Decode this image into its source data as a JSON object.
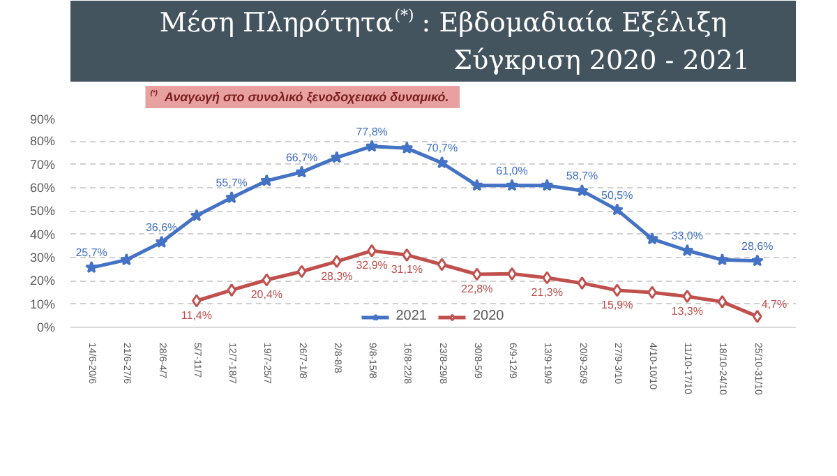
{
  "chart_data": {
    "type": "line",
    "title": "Μέση Πληρότητα$^{(*)}$: Εβδομαδιαία Εξέλιξη",
    "subtitle": "Σύγκριση 2020 - 2021",
    "annotations": [
      "$^{(*)}$ Αναγωγή στο συνολικό ξενοδοχειακό δυναμικό."
    ],
    "categories": [
      "14/6-20/6",
      "21/6-27/6",
      "28/6-4/7",
      "5/7-11/7",
      "12/7-18/7",
      "19/7-25/7",
      "26/7-1/8",
      "2/8-8/8",
      "9/8-15/8",
      "16/8-22/8",
      "23/8-29/8",
      "30/8-5/9",
      "6/9-12/9",
      "13/9-19/9",
      "20/9-26/9",
      "27/9-3/10",
      "4/10-10/10",
      "11/10-17/10",
      "18/10-24/10",
      "25/10-31/10"
    ],
    "series": [
      {
        "name": "2021",
        "color": "#4472c4",
        "marker": "star",
        "values": [
          25.7,
          29,
          36.6,
          48,
          55.7,
          63,
          66.7,
          73,
          77.8,
          77,
          70.7,
          61,
          61.0,
          61,
          58.7,
          50.5,
          38,
          33.0,
          29,
          28.6
        ],
        "value_labels": [
          "25,7%",
          null,
          "36,6%",
          null,
          "55,7%",
          null,
          "66,7%",
          null,
          "77,8%",
          null,
          "70,7%",
          null,
          "61,0%",
          null,
          "58,7%",
          "50,5%",
          null,
          "33,0%",
          null,
          "28,6%"
        ]
      },
      {
        "name": "2020",
        "color": "#c0504d",
        "marker": "diamond",
        "values": [
          null,
          null,
          null,
          11.4,
          16,
          20.4,
          24,
          28.3,
          32.9,
          31.1,
          27,
          22.8,
          23,
          21.3,
          19,
          15.9,
          15,
          13.3,
          11,
          4.7
        ],
        "value_labels": [
          null,
          null,
          null,
          "11,4%",
          null,
          "20,4%",
          null,
          "28,3%",
          "32,9%",
          "31,1%",
          null,
          "22,8%",
          null,
          "21,3%",
          null,
          "15,9%",
          null,
          "13,3%",
          null,
          "4,7%"
        ]
      }
    ],
    "ylim": [
      0,
      90
    ],
    "yticks": [
      {
        "value": 0,
        "label": "0%"
      },
      {
        "value": 10,
        "label": "10%"
      },
      {
        "value": 20,
        "label": "20%"
      },
      {
        "value": 30,
        "label": "30%"
      },
      {
        "value": 40,
        "label": "40%"
      },
      {
        "value": 50,
        "label": "50%"
      },
      {
        "value": 60,
        "label": "60%"
      },
      {
        "value": 70,
        "label": "70%"
      },
      {
        "value": 80,
        "label": "80%"
      },
      {
        "value": 90,
        "label": "90%"
      }
    ],
    "grid": "y",
    "legend": "bottom",
    "line_style": "solid"
  }
}
